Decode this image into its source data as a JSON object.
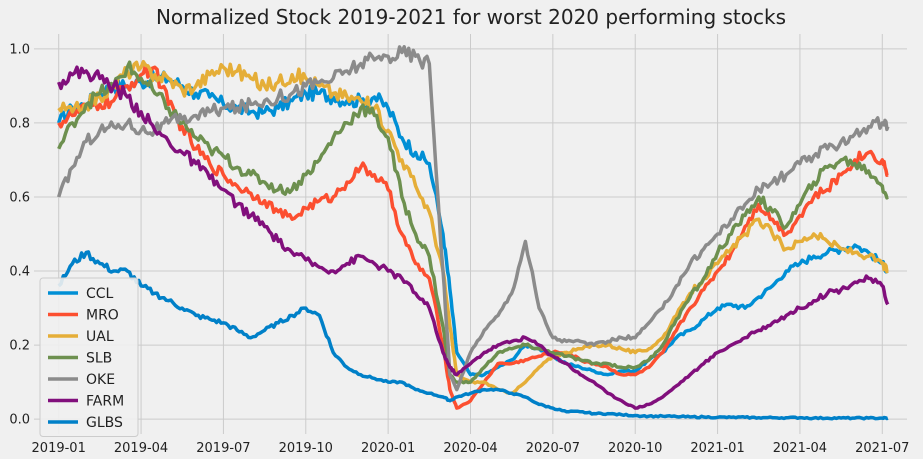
{
  "chart_data": {
    "type": "line",
    "title": "Normalized Stock 2019-2021 for worst 2020 performing stocks",
    "xlabel": "",
    "ylabel": "",
    "x_tick_labels": [
      "2019-01",
      "2019-04",
      "2019-07",
      "2019-10",
      "2020-01",
      "2020-04",
      "2020-07",
      "2020-10",
      "2021-01",
      "2021-04",
      "2021-07"
    ],
    "x_tick_values": [
      0,
      3,
      6,
      9,
      12,
      15,
      18,
      21,
      24,
      27,
      30
    ],
    "xlim": [
      -0.9,
      30.9
    ],
    "y_tick_labels": [
      "0.0",
      "0.2",
      "0.4",
      "0.6",
      "0.8",
      "1.0"
    ],
    "y_tick_values": [
      0.0,
      0.2,
      0.4,
      0.6,
      0.8,
      1.0
    ],
    "ylim": [
      -0.04,
      1.04
    ],
    "grid": true,
    "legend_position": "lower-left",
    "x": [
      0,
      0.5,
      1,
      1.5,
      2,
      2.5,
      3,
      3.5,
      4,
      4.5,
      5,
      5.5,
      6,
      6.5,
      7,
      7.5,
      8,
      8.5,
      9,
      9.5,
      10,
      10.5,
      11,
      11.5,
      12,
      12.5,
      13,
      13.5,
      14,
      14.25,
      14.5,
      15,
      15.5,
      16,
      16.5,
      17,
      17.5,
      18,
      18.5,
      19,
      19.5,
      20,
      20.5,
      21,
      21.5,
      22,
      22.5,
      23,
      23.5,
      24,
      24.5,
      25,
      25.5,
      26,
      26.5,
      27,
      27.5,
      28,
      28.5,
      29,
      29.5,
      30,
      30.2
    ],
    "series": [
      {
        "name": "CCL",
        "color": "#008fd5",
        "values": [
          0.8,
          0.84,
          0.85,
          0.88,
          0.9,
          0.9,
          0.91,
          0.92,
          0.92,
          0.9,
          0.88,
          0.87,
          0.85,
          0.84,
          0.83,
          0.83,
          0.84,
          0.86,
          0.88,
          0.88,
          0.87,
          0.86,
          0.86,
          0.87,
          0.84,
          0.76,
          0.72,
          0.69,
          0.5,
          0.35,
          0.18,
          0.12,
          0.12,
          0.14,
          0.16,
          0.2,
          0.19,
          0.17,
          0.15,
          0.14,
          0.13,
          0.12,
          0.13,
          0.13,
          0.16,
          0.18,
          0.22,
          0.24,
          0.27,
          0.3,
          0.31,
          0.3,
          0.33,
          0.36,
          0.4,
          0.42,
          0.44,
          0.45,
          0.46,
          0.47,
          0.45,
          0.42,
          0.4
        ]
      },
      {
        "name": "MRO",
        "color": "#fc4f30",
        "values": [
          0.8,
          0.82,
          0.84,
          0.85,
          0.86,
          0.9,
          0.93,
          0.95,
          0.85,
          0.79,
          0.73,
          0.69,
          0.66,
          0.63,
          0.61,
          0.59,
          0.56,
          0.54,
          0.57,
          0.59,
          0.6,
          0.64,
          0.68,
          0.66,
          0.62,
          0.5,
          0.42,
          0.38,
          0.2,
          0.08,
          0.03,
          0.05,
          0.1,
          0.15,
          0.15,
          0.16,
          0.17,
          0.18,
          0.18,
          0.16,
          0.15,
          0.14,
          0.12,
          0.12,
          0.14,
          0.18,
          0.24,
          0.3,
          0.35,
          0.4,
          0.45,
          0.52,
          0.58,
          0.54,
          0.5,
          0.55,
          0.6,
          0.62,
          0.66,
          0.7,
          0.72,
          0.7,
          0.66
        ]
      },
      {
        "name": "UAL",
        "color": "#e5ae38",
        "values": [
          0.84,
          0.83,
          0.85,
          0.87,
          0.9,
          0.94,
          0.95,
          0.93,
          0.92,
          0.89,
          0.9,
          0.93,
          0.95,
          0.94,
          0.92,
          0.9,
          0.91,
          0.93,
          0.92,
          0.9,
          0.88,
          0.87,
          0.86,
          0.84,
          0.78,
          0.7,
          0.63,
          0.56,
          0.4,
          0.25,
          0.12,
          0.1,
          0.1,
          0.08,
          0.07,
          0.1,
          0.14,
          0.17,
          0.18,
          0.19,
          0.2,
          0.2,
          0.19,
          0.18,
          0.19,
          0.22,
          0.28,
          0.34,
          0.38,
          0.42,
          0.46,
          0.5,
          0.54,
          0.5,
          0.46,
          0.48,
          0.5,
          0.48,
          0.46,
          0.45,
          0.44,
          0.42,
          0.4
        ]
      },
      {
        "name": "SLB",
        "color": "#6d904f",
        "values": [
          0.73,
          0.8,
          0.85,
          0.88,
          0.9,
          0.95,
          0.92,
          0.88,
          0.84,
          0.8,
          0.76,
          0.73,
          0.71,
          0.68,
          0.66,
          0.64,
          0.62,
          0.62,
          0.66,
          0.7,
          0.76,
          0.8,
          0.84,
          0.82,
          0.76,
          0.6,
          0.5,
          0.44,
          0.25,
          0.12,
          0.1,
          0.1,
          0.14,
          0.18,
          0.19,
          0.2,
          0.19,
          0.18,
          0.17,
          0.16,
          0.15,
          0.15,
          0.14,
          0.14,
          0.16,
          0.2,
          0.27,
          0.33,
          0.38,
          0.45,
          0.5,
          0.55,
          0.6,
          0.56,
          0.52,
          0.58,
          0.64,
          0.68,
          0.7,
          0.69,
          0.67,
          0.63,
          0.6
        ]
      },
      {
        "name": "OKE",
        "color": "#8b8b8b",
        "values": [
          0.6,
          0.68,
          0.75,
          0.78,
          0.79,
          0.8,
          0.78,
          0.78,
          0.8,
          0.81,
          0.82,
          0.83,
          0.84,
          0.84,
          0.85,
          0.86,
          0.87,
          0.88,
          0.9,
          0.91,
          0.92,
          0.94,
          0.96,
          0.97,
          0.98,
          0.99,
          0.98,
          0.96,
          0.4,
          0.12,
          0.08,
          0.18,
          0.24,
          0.28,
          0.34,
          0.48,
          0.3,
          0.22,
          0.21,
          0.21,
          0.2,
          0.21,
          0.22,
          0.22,
          0.26,
          0.3,
          0.36,
          0.42,
          0.46,
          0.5,
          0.54,
          0.58,
          0.62,
          0.64,
          0.66,
          0.69,
          0.71,
          0.73,
          0.75,
          0.77,
          0.79,
          0.8,
          0.79
        ]
      },
      {
        "name": "FARM",
        "color": "#810f7c",
        "values": [
          0.91,
          0.93,
          0.94,
          0.92,
          0.9,
          0.87,
          0.83,
          0.78,
          0.75,
          0.72,
          0.69,
          0.65,
          0.62,
          0.58,
          0.55,
          0.52,
          0.48,
          0.45,
          0.43,
          0.41,
          0.4,
          0.42,
          0.44,
          0.42,
          0.4,
          0.38,
          0.34,
          0.3,
          0.18,
          0.14,
          0.12,
          0.15,
          0.18,
          0.2,
          0.21,
          0.22,
          0.2,
          0.17,
          0.15,
          0.12,
          0.1,
          0.07,
          0.05,
          0.03,
          0.04,
          0.06,
          0.09,
          0.12,
          0.15,
          0.18,
          0.2,
          0.22,
          0.24,
          0.26,
          0.28,
          0.3,
          0.32,
          0.34,
          0.35,
          0.37,
          0.38,
          0.36,
          0.31
        ]
      },
      {
        "name": "GLBS",
        "color": "#0080c8",
        "values": [
          0.36,
          0.42,
          0.45,
          0.42,
          0.4,
          0.4,
          0.36,
          0.34,
          0.32,
          0.3,
          0.28,
          0.27,
          0.26,
          0.24,
          0.22,
          0.24,
          0.26,
          0.28,
          0.3,
          0.28,
          0.18,
          0.14,
          0.12,
          0.11,
          0.1,
          0.1,
          0.08,
          0.07,
          0.06,
          0.05,
          0.06,
          0.07,
          0.08,
          0.08,
          0.07,
          0.06,
          0.04,
          0.03,
          0.02,
          0.02,
          0.015,
          0.015,
          0.012,
          0.01,
          0.008,
          0.008,
          0.007,
          0.006,
          0.006,
          0.005,
          0.005,
          0.005,
          0.004,
          0.004,
          0.004,
          0.004,
          0.003,
          0.003,
          0.003,
          0.003,
          0.003,
          0.003,
          0.003
        ]
      }
    ]
  }
}
